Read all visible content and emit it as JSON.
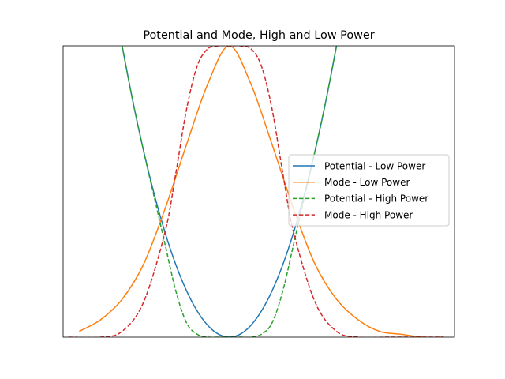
{
  "chart_data": {
    "type": "line",
    "title": "Potential and Mode, High and Low Power",
    "xlabel": "",
    "ylabel": "",
    "xlim": [
      -1.55,
      2.1
    ],
    "ylim": [
      0,
      1.0
    ],
    "grid": false,
    "ticks_visible": false,
    "legend_position": "center-right",
    "series": [
      {
        "name": "Potential - Low Power",
        "color": "#1f77b4",
        "style": "solid",
        "x": [
          -1.0,
          -0.9,
          -0.8,
          -0.7,
          -0.6,
          -0.5,
          -0.4,
          -0.3,
          -0.2,
          -0.1,
          0.0,
          0.1,
          0.2,
          0.3,
          0.4,
          0.5,
          0.6,
          0.7,
          0.8,
          0.9,
          1.0
        ],
        "values": [
          1.0,
          0.81,
          0.64,
          0.49,
          0.36,
          0.25,
          0.16,
          0.09,
          0.04,
          0.01,
          0.0,
          0.01,
          0.04,
          0.09,
          0.16,
          0.25,
          0.36,
          0.49,
          0.64,
          0.81,
          1.0
        ]
      },
      {
        "name": "Mode - Low Power",
        "color": "#ff7f0e",
        "style": "solid",
        "x": [
          -1.4,
          -1.2,
          -1.0,
          -0.8,
          -0.6,
          -0.4,
          -0.2,
          0.0,
          0.2,
          0.4,
          0.6,
          0.8,
          1.0,
          1.2,
          1.4,
          1.6,
          1.8,
          2.0
        ],
        "values": [
          0.02,
          0.06,
          0.13,
          0.25,
          0.44,
          0.66,
          0.87,
          1.0,
          0.87,
          0.66,
          0.44,
          0.25,
          0.13,
          0.06,
          0.02,
          0.01,
          0.0,
          0.0
        ]
      },
      {
        "name": "Potential - High Power",
        "color": "#2ca02c",
        "style": "dashed",
        "x": [
          -1.0,
          -0.9,
          -0.8,
          -0.7,
          -0.6,
          -0.5,
          -0.4,
          -0.3,
          -0.2,
          -0.1,
          0.0,
          0.1,
          0.2,
          0.3,
          0.4,
          0.5,
          0.6,
          0.7,
          0.8,
          0.9,
          1.0
        ],
        "values": [
          1.0,
          0.81,
          0.64,
          0.48,
          0.32,
          0.16,
          0.05,
          0.01,
          0.0,
          0.0,
          0.0,
          0.0,
          0.0,
          0.01,
          0.05,
          0.16,
          0.32,
          0.48,
          0.64,
          0.81,
          1.0
        ]
      },
      {
        "name": "Mode - High Power",
        "color": "#d62728",
        "style": "dashed",
        "x": [
          -1.5,
          -1.2,
          -1.0,
          -0.8,
          -0.6,
          -0.5,
          -0.4,
          -0.3,
          -0.2,
          -0.1,
          0.0,
          0.1,
          0.2,
          0.3,
          0.4,
          0.5,
          0.6,
          0.8,
          1.0,
          1.2,
          1.5,
          2.0
        ],
        "values": [
          0.0,
          0.0,
          0.02,
          0.12,
          0.36,
          0.56,
          0.78,
          0.93,
          0.99,
          1.0,
          1.0,
          1.0,
          0.99,
          0.93,
          0.78,
          0.56,
          0.36,
          0.12,
          0.02,
          0.0,
          0.0,
          0.0
        ]
      }
    ]
  }
}
